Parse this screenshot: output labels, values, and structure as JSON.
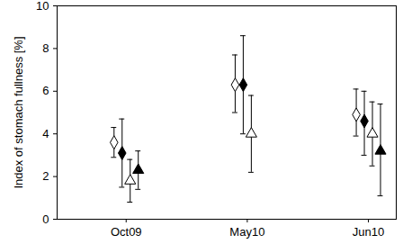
{
  "chart_data": {
    "type": "scatter",
    "y_label": "Index of stomach fullness [%]",
    "categories": [
      "Oct09",
      "May10",
      "Jun10"
    ],
    "ylim": [
      0,
      10
    ],
    "yticks": [
      0,
      2,
      4,
      6,
      8,
      10
    ],
    "grid": false,
    "series": [
      {
        "marker": "diamond_open",
        "color": "#000000",
        "values": [
          3.6,
          6.3,
          4.9
        ],
        "lower": [
          2.9,
          5.0,
          3.9
        ],
        "upper": [
          4.3,
          7.7,
          6.1
        ]
      },
      {
        "marker": "diamond",
        "color": "#000000",
        "values": [
          3.1,
          6.3,
          4.6
        ],
        "lower": [
          1.5,
          4.0,
          3.0
        ],
        "upper": [
          4.7,
          8.6,
          6.0
        ]
      },
      {
        "marker": "triangle_open",
        "color": "#000000",
        "values": [
          1.8,
          4.0,
          4.0
        ],
        "lower": [
          0.8,
          2.2,
          2.5
        ],
        "upper": [
          2.8,
          5.8,
          5.5
        ]
      },
      {
        "marker": "triangle",
        "color": "#000000",
        "values": [
          2.3,
          null,
          3.2
        ],
        "lower": [
          1.4,
          null,
          1.1
        ],
        "upper": [
          3.2,
          null,
          5.4
        ]
      }
    ]
  }
}
